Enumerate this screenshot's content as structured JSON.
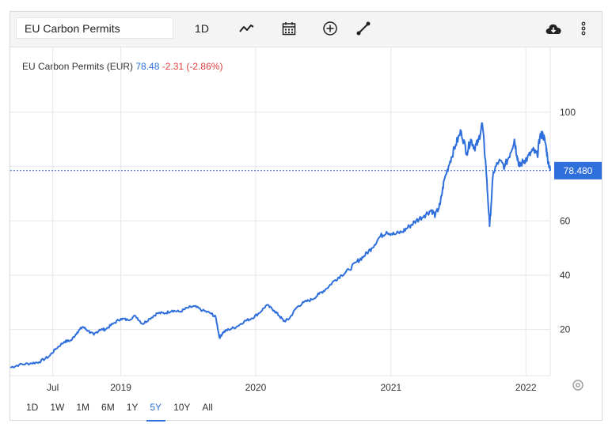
{
  "app": {
    "search_value": "EU Carbon Permits",
    "interval_label": "1D"
  },
  "toolbar_icons": [
    "line-chart-icon",
    "calendar-icon",
    "plus-circle-icon",
    "draw-line-icon",
    "cloud-download-icon",
    "more-vertical-icon"
  ],
  "legend": {
    "name": "EU Carbon Permits (EUR)",
    "value": "78.48",
    "change": "-2.31 (-2.86%)"
  },
  "last_price_label": "78.480",
  "range_buttons": [
    "1D",
    "1W",
    "1M",
    "6M",
    "1Y",
    "5Y",
    "10Y",
    "All"
  ],
  "active_range": "5Y",
  "colors": {
    "line": "#2f6fdc",
    "negative": "#e03c3c",
    "grid": "#e6e6e6"
  },
  "chart_data": {
    "type": "line",
    "x_tick_labels": [
      "Jul",
      "2019",
      "2020",
      "2021",
      "2022"
    ],
    "x_ticks": [
      "2018-07-01",
      "2019-01-01",
      "2020-01-01",
      "2021-01-01",
      "2022-01-01"
    ],
    "y_tick_labels": [
      "20",
      "40",
      "60",
      "80",
      "100"
    ],
    "y_ticks": [
      20,
      40,
      60,
      80,
      100
    ],
    "xlim": [
      "2018-03-08",
      "2022-03-08"
    ],
    "ylim": [
      3,
      109
    ],
    "last_value": 78.48,
    "series": [
      {
        "x": [
          "2018-03-08",
          "2018-04-01",
          "2018-05-01",
          "2018-05-25",
          "2018-06-20",
          "2018-07-10",
          "2018-08-01",
          "2018-08-20",
          "2018-09-05",
          "2018-09-20",
          "2018-10-05",
          "2018-10-20",
          "2018-11-05",
          "2018-11-20",
          "2018-12-10",
          "2019-01-01",
          "2019-01-20",
          "2019-02-10",
          "2019-03-01",
          "2019-03-20",
          "2019-04-10",
          "2019-05-01",
          "2019-05-20",
          "2019-06-10",
          "2019-07-01",
          "2019-07-20",
          "2019-08-10",
          "2019-09-01",
          "2019-09-15",
          "2019-09-25",
          "2019-10-05",
          "2019-10-20",
          "2019-11-10",
          "2019-12-01",
          "2019-12-20",
          "2020-01-10",
          "2020-01-31",
          "2020-02-20",
          "2020-03-05",
          "2020-03-18",
          "2020-04-01",
          "2020-04-20",
          "2020-05-10",
          "2020-06-01",
          "2020-06-20",
          "2020-07-10",
          "2020-08-01",
          "2020-08-20",
          "2020-09-10",
          "2020-10-01",
          "2020-10-20",
          "2020-11-10",
          "2020-12-01",
          "2020-12-20",
          "2021-01-10",
          "2021-02-01",
          "2021-02-20",
          "2021-03-10",
          "2021-04-01",
          "2021-04-20",
          "2021-05-01",
          "2021-05-14",
          "2021-05-25",
          "2021-06-10",
          "2021-06-25",
          "2021-07-10",
          "2021-07-25",
          "2021-08-05",
          "2021-08-15",
          "2021-08-25",
          "2021-09-05",
          "2021-09-15",
          "2021-09-25",
          "2021-10-05",
          "2021-10-20",
          "2021-11-05",
          "2021-11-20",
          "2021-12-01",
          "2021-12-08",
          "2021-12-15",
          "2021-12-25",
          "2022-01-05",
          "2022-01-20",
          "2022-02-01",
          "2022-02-08",
          "2022-02-16",
          "2022-02-24",
          "2022-03-01",
          "2022-03-08"
        ],
        "y": [
          6,
          7,
          7.5,
          8,
          10,
          13,
          15.5,
          16,
          19,
          21,
          19.5,
          18,
          20,
          20,
          22,
          24,
          23.5,
          25,
          22,
          24,
          26,
          26,
          27,
          26.5,
          28,
          28.5,
          27,
          26,
          24.5,
          17,
          19,
          20,
          21,
          23,
          24,
          26,
          29,
          27,
          25,
          23,
          24,
          28,
          30,
          31,
          33,
          35,
          38,
          40,
          42,
          45,
          47,
          50,
          54,
          56,
          55,
          56,
          58,
          60,
          62,
          64,
          62,
          66,
          75,
          82,
          88,
          93,
          85,
          90,
          87,
          89,
          96,
          80,
          58,
          78,
          82,
          80,
          85,
          90,
          84,
          80,
          82,
          83,
          86,
          84,
          91,
          92,
          88,
          83,
          78.48
        ]
      }
    ]
  }
}
